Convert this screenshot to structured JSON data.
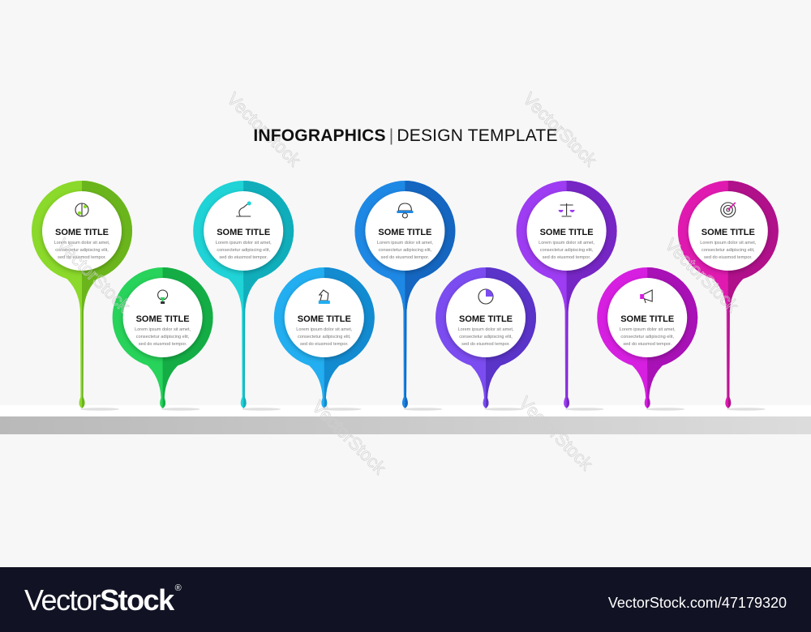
{
  "header": {
    "title_bold": "INFOGRAPHICS",
    "separator": "|",
    "title_light": "DESIGN TEMPLATE"
  },
  "steps": [
    {
      "title": "SOME TITLE",
      "lines": [
        "Lorem ipsum dolor sit amet,",
        "consectetur adipiscing elit,",
        "sed do eiusmod tempor."
      ],
      "icon": "brain-icon",
      "position": "top",
      "color": "#8bd92a",
      "dark": "#6bb51c"
    },
    {
      "title": "SOME TITLE",
      "lines": [
        "Lorem ipsum dolor sit amet,",
        "consectetur adipiscing elit,",
        "sed do eiusmod tempor."
      ],
      "icon": "lightbulb-icon",
      "position": "bottom",
      "color": "#27d35a",
      "dark": "#14ad45"
    },
    {
      "title": "SOME TITLE",
      "lines": [
        "Lorem ipsum dolor sit amet,",
        "consectetur adipiscing elit,",
        "sed do eiusmod tempor."
      ],
      "icon": "microscope-icon",
      "position": "top",
      "color": "#1fd3d6",
      "dark": "#10aebb"
    },
    {
      "title": "SOME TITLE",
      "lines": [
        "Lorem ipsum dolor sit amet,",
        "consectetur adipiscing elit,",
        "sed do eiusmod tempor."
      ],
      "icon": "chess-knight-icon",
      "position": "bottom",
      "color": "#22aef0",
      "dark": "#138bd0"
    },
    {
      "title": "SOME TITLE",
      "lines": [
        "Lorem ipsum dolor sit amet,",
        "consectetur adipiscing elit,",
        "sed do eiusmod tempor."
      ],
      "icon": "hard-hat-icon",
      "position": "top",
      "color": "#1e88e5",
      "dark": "#1566c0"
    },
    {
      "title": "SOME TITLE",
      "lines": [
        "Lorem ipsum dolor sit amet,",
        "consectetur adipiscing elit,",
        "sed do eiusmod tempor."
      ],
      "icon": "pie-chart-icon",
      "position": "bottom",
      "color": "#7b4cf0",
      "dark": "#5a33c8"
    },
    {
      "title": "SOME TITLE",
      "lines": [
        "Lorem ipsum dolor sit amet,",
        "consectetur adipiscing elit,",
        "sed do eiusmod tempor."
      ],
      "icon": "scales-icon",
      "position": "top",
      "color": "#9d3cf2",
      "dark": "#7626c4"
    },
    {
      "title": "SOME TITLE",
      "lines": [
        "Lorem ipsum dolor sit amet,",
        "consectetur adipiscing elit,",
        "sed do eiusmod tempor."
      ],
      "icon": "megaphone-icon",
      "position": "bottom",
      "color": "#d61fe0",
      "dark": "#a811b5"
    },
    {
      "title": "SOME TITLE",
      "lines": [
        "Lorem ipsum dolor sit amet,",
        "consectetur adipiscing elit,",
        "sed do eiusmod tempor."
      ],
      "icon": "target-icon",
      "position": "top",
      "color": "#e01ab0",
      "dark": "#b0108a"
    }
  ],
  "watermark": "VectorStock",
  "footer": {
    "logo_light": "Vector",
    "logo_bold": "Stock",
    "logo_mark": "®",
    "url": "VectorStock.com/47179320"
  }
}
